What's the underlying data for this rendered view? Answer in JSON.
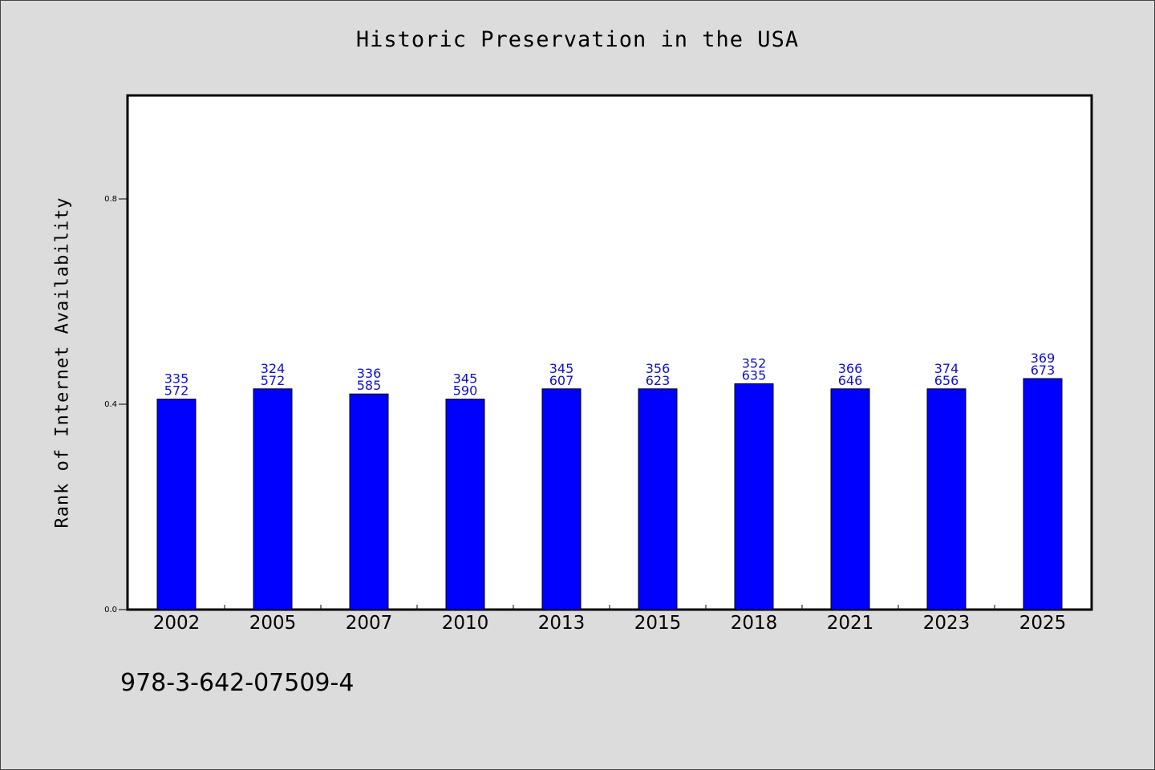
{
  "chart_data": {
    "type": "bar",
    "title": "Historic Preservation in the USA",
    "xlabel": "",
    "ylabel": "Rank of Internet Availability",
    "ylim": [
      0,
      1.0
    ],
    "yticks": [
      "0.0",
      "0.4",
      "0.8"
    ],
    "ytick_values": [
      0.0,
      0.4,
      0.8
    ],
    "categories": [
      "2002",
      "2005",
      "2007",
      "2010",
      "2013",
      "2015",
      "2018",
      "2021",
      "2023",
      "2025"
    ],
    "values": [
      0.41,
      0.43,
      0.42,
      0.41,
      0.43,
      0.43,
      0.44,
      0.43,
      0.43,
      0.45
    ],
    "data_labels_top": [
      "335",
      "324",
      "336",
      "345",
      "345",
      "356",
      "352",
      "366",
      "374",
      "369"
    ],
    "data_labels_bottom": [
      "572",
      "572",
      "585",
      "590",
      "607",
      "623",
      "635",
      "646",
      "656",
      "673"
    ],
    "bar_color": "#0000ff",
    "label_color": "#1010cc",
    "grid": false,
    "legend": "none"
  },
  "footer": {
    "isbn": "978-3-642-07509-4"
  }
}
